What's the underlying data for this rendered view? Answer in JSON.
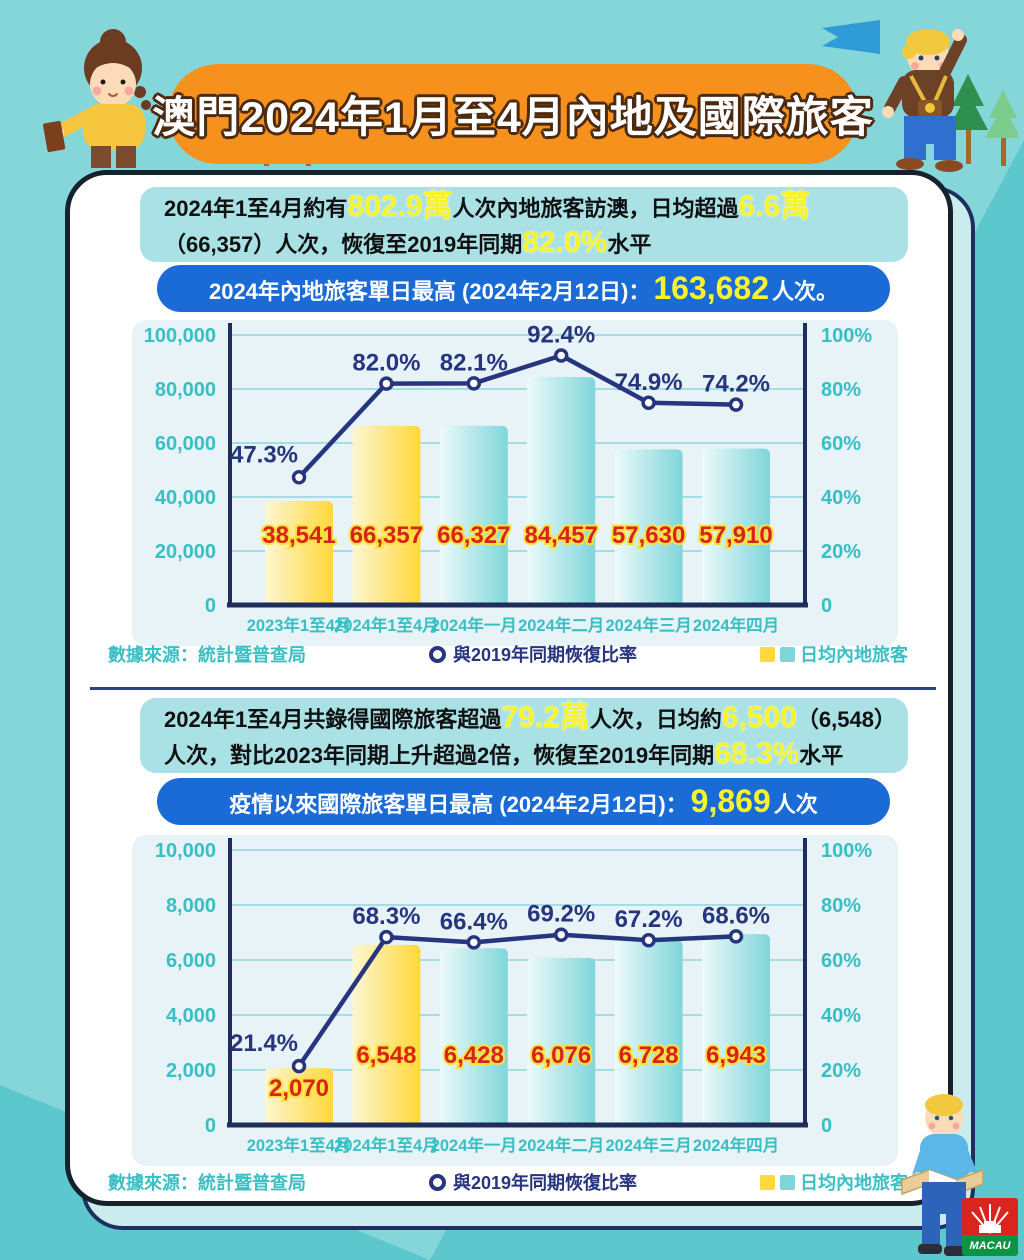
{
  "title": "澳門2024年1月至4月內地及國際旅客",
  "colors": {
    "background_light": "#84D6D9",
    "background_dark": "#5CC8CD",
    "title_banner": "#F6911E",
    "info_block": "#A9E1E5",
    "record_banner": "#1B6BD6",
    "highlight_yellow": "#F9F32C",
    "bar_yellow": [
      "#FCF6D2",
      "#FFD83A"
    ],
    "bar_teal": [
      "#EDFAFA",
      "#7FD6DA"
    ],
    "line": "#26357E",
    "value_label": "#D6231C",
    "value_label_outline": "#FFDF3C",
    "axis": "#1F2D5C",
    "tick": "#36BFC5",
    "grid": "#A5DEE2"
  },
  "sections": [
    {
      "summary_line1": [
        {
          "t": "2024年1至4月約有"
        },
        {
          "t": "802.9萬",
          "hl": true
        },
        {
          "t": "人次內地旅客訪澳，日均超過"
        },
        {
          "t": "6.6萬",
          "hl": true
        }
      ],
      "summary_line2": [
        {
          "t": "（66,357）人次，恢復至2019年同期"
        },
        {
          "t": "82.0%",
          "hl": true
        },
        {
          "t": "水平"
        }
      ],
      "banner_runs": [
        {
          "t": "2024年內地旅客單日最高 (2024年2月12日)："
        },
        {
          "t": "163,682",
          "hl": true
        },
        {
          "t": "人次。"
        }
      ]
    },
    {
      "summary_line1": [
        {
          "t": "2024年1至4月共錄得國際旅客超過"
        },
        {
          "t": "79.2萬",
          "hl": true
        },
        {
          "t": "人次，日均約"
        },
        {
          "t": "6,500",
          "hl": true
        },
        {
          "t": "（6,548）"
        }
      ],
      "summary_line2": [
        {
          "t": "人次，對比2023年同期上升超過2倍，恢復至2019年同期"
        },
        {
          "t": "68.3%",
          "hl": true
        },
        {
          "t": "水平"
        }
      ],
      "banner_runs": [
        {
          "t": "疫情以來國際旅客單日最高 (2024年2月12日)："
        },
        {
          "t": "9,869",
          "hl": true
        },
        {
          "t": "人次"
        }
      ]
    }
  ],
  "footer": {
    "source": "數據來源：統計暨普查局",
    "line_legend": "與2019年同期恢復比率",
    "bar_legend": "日均內地旅客"
  },
  "logo_text": "MACAU",
  "chart_data": [
    {
      "type": "bar",
      "categories": [
        "2023年1至4月",
        "2024年1至4月",
        "2024年一月",
        "2024年二月",
        "2024年三月",
        "2024年四月"
      ],
      "series": [
        {
          "name": "日均內地旅客",
          "type": "bar",
          "values": [
            38541,
            66357,
            66327,
            84457,
            57630,
            57910
          ],
          "labels": [
            "38,541",
            "66,357",
            "66,327",
            "84,457",
            "57,630",
            "57,910"
          ],
          "colors": [
            "yellow",
            "yellow",
            "teal",
            "teal",
            "teal",
            "teal"
          ]
        },
        {
          "name": "與2019年同期恢復比率",
          "type": "line",
          "values": [
            47.3,
            82.0,
            82.1,
            92.4,
            74.9,
            74.2
          ],
          "labels": [
            "47.3%",
            "82.0%",
            "82.1%",
            "92.4%",
            "74.9%",
            "74.2%"
          ]
        }
      ],
      "y_left": {
        "max": 100000,
        "ticks": [
          "0",
          "20,000",
          "40,000",
          "60,000",
          "80,000",
          "100,000"
        ]
      },
      "y_right": {
        "max": 100,
        "ticks": [
          "0",
          "20%",
          "40%",
          "60%",
          "80%",
          "100%"
        ]
      },
      "grid": true,
      "legend_position": "bottom"
    },
    {
      "type": "bar",
      "categories": [
        "2023年1至4月",
        "2024年1至4月",
        "2024年一月",
        "2024年二月",
        "2024年三月",
        "2024年四月"
      ],
      "series": [
        {
          "name": "日均內地旅客",
          "type": "bar",
          "values": [
            2070,
            6548,
            6428,
            6076,
            6728,
            6943
          ],
          "labels": [
            "2,070",
            "6,548",
            "6,428",
            "6,076",
            "6,728",
            "6,943"
          ],
          "colors": [
            "yellow",
            "yellow",
            "teal",
            "teal",
            "teal",
            "teal"
          ]
        },
        {
          "name": "與2019年同期恢復比率",
          "type": "line",
          "values": [
            21.4,
            68.3,
            66.4,
            69.2,
            67.2,
            68.6
          ],
          "labels": [
            "21.4%",
            "68.3%",
            "66.4%",
            "69.2%",
            "67.2%",
            "68.6%"
          ]
        }
      ],
      "y_left": {
        "max": 10000,
        "ticks": [
          "0",
          "2,000",
          "4,000",
          "6,000",
          "8,000",
          "10,000"
        ]
      },
      "y_right": {
        "max": 100,
        "ticks": [
          "0",
          "20%",
          "40%",
          "60%",
          "80%",
          "100%"
        ]
      },
      "grid": true,
      "legend_position": "bottom"
    }
  ]
}
